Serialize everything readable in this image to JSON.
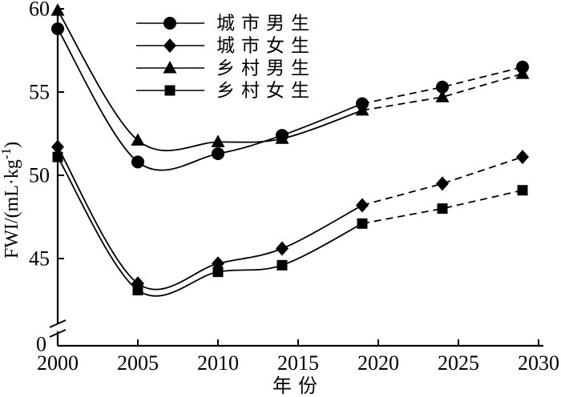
{
  "chart_data": {
    "type": "line",
    "title": "",
    "xlabel": "年份",
    "ylabel": "FWI/(mL·kg⁻¹)",
    "x": [
      2000,
      2005,
      2010,
      2014,
      2019,
      2024,
      2029
    ],
    "solid_until_x": 2019,
    "series": [
      {
        "id": "urban-boys",
        "name": "城市男生",
        "marker": "circle",
        "values": [
          58.8,
          50.8,
          51.3,
          52.4,
          54.3,
          55.3,
          56.5
        ]
      },
      {
        "id": "urban-girls",
        "name": "城市女生",
        "marker": "diamond",
        "values": [
          51.7,
          43.5,
          44.7,
          45.6,
          48.2,
          49.5,
          51.1
        ]
      },
      {
        "id": "rural-boys",
        "name": "乡村男生",
        "marker": "triangle",
        "values": [
          59.9,
          52.1,
          52.0,
          52.2,
          53.9,
          54.7,
          56.1
        ]
      },
      {
        "id": "rural-girls",
        "name": "乡村女生",
        "marker": "square",
        "values": [
          51.1,
          43.1,
          44.2,
          44.6,
          47.1,
          48.0,
          49.1
        ]
      }
    ],
    "x_ticks": [
      2000,
      2005,
      2010,
      2015,
      2020,
      2025,
      2030
    ],
    "y_ticks": [
      45,
      50,
      55,
      60
    ],
    "y_origin_label": "0",
    "y_axis_break": true,
    "xlim": [
      2000,
      2030
    ],
    "ylim": [
      0,
      60
    ],
    "grid": false,
    "legend_position": "top-center",
    "line_style_observed": "solid",
    "line_style_predicted": "dashed",
    "colors": {
      "line": "#000000",
      "background": "#ffffff"
    }
  }
}
